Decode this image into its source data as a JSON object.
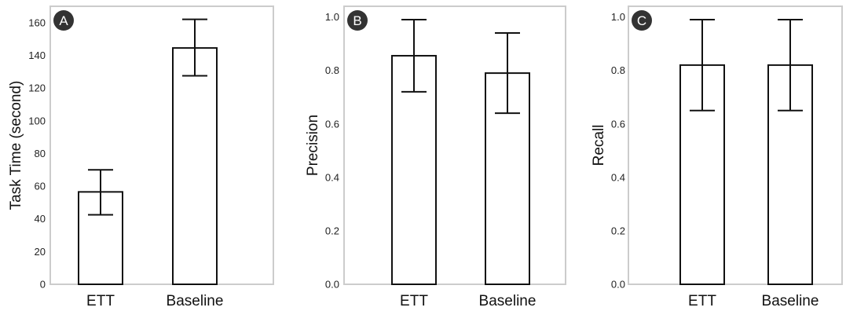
{
  "chart_data": [
    {
      "type": "bar",
      "panel_label": "A",
      "categories": [
        "ETT",
        "Baseline"
      ],
      "values": [
        56.5,
        144.5
      ],
      "error_low": [
        42.5,
        127.5
      ],
      "error_high": [
        70.0,
        162.0
      ],
      "ylabel": "Task Time (second)",
      "ylim": [
        0,
        170
      ],
      "yticks": [
        "0",
        "20",
        "40",
        "60",
        "80",
        "100",
        "120",
        "140",
        "160"
      ],
      "grid": false
    },
    {
      "type": "bar",
      "panel_label": "B",
      "categories": [
        "ETT",
        "Baseline"
      ],
      "values": [
        0.855,
        0.79
      ],
      "error_low": [
        0.72,
        0.64
      ],
      "error_high": [
        0.99,
        0.94
      ],
      "ylabel": "Precision",
      "ylim": [
        0,
        1.04
      ],
      "yticks": [
        "0.0",
        "0.2",
        "0.4",
        "0.6",
        "0.8",
        "1.0"
      ],
      "grid": false
    },
    {
      "type": "bar",
      "panel_label": "C",
      "categories": [
        "ETT",
        "Baseline"
      ],
      "values": [
        0.82,
        0.82
      ],
      "error_low": [
        0.65,
        0.65
      ],
      "error_high": [
        0.99,
        0.99
      ],
      "ylabel": "Recall",
      "ylim": [
        0,
        1.04
      ],
      "yticks": [
        "0.0",
        "0.2",
        "0.4",
        "0.6",
        "0.8",
        "1.0"
      ],
      "grid": false
    }
  ]
}
